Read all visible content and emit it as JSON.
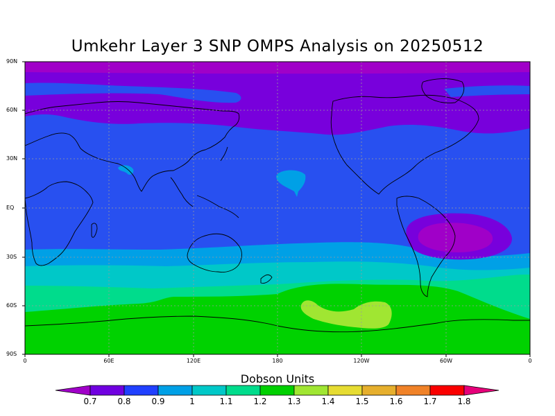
{
  "title": "Umkehr Layer 3 SNP OMPS Analysis on 20250512",
  "lat_labels": [
    "90N",
    "60N",
    "30N",
    "EQ",
    "30S",
    "60S",
    "90S"
  ],
  "lon_labels": [
    "0",
    "60E",
    "120E",
    "180",
    "120W",
    "60W",
    "0"
  ],
  "colorbar": {
    "title": "Dobson Units",
    "labels": [
      "0.7",
      "0.8",
      "0.9",
      "1",
      "1.1",
      "1.2",
      "1.3",
      "1.4",
      "1.5",
      "1.6",
      "1.7",
      "1.8"
    ],
    "colors": [
      "#a000c8",
      "#7000e0",
      "#2040ff",
      "#00a0e6",
      "#00c8c8",
      "#00dc8c",
      "#00d000",
      "#a0e632",
      "#e6dc32",
      "#e6af2d",
      "#f08228",
      "#fa0000",
      "#e6007a"
    ]
  },
  "colors": {
    "band_0_7": "#a000c8",
    "band_0_8": "#7800dc",
    "band_0_9": "#2850f0",
    "band_1_0": "#00a0e6",
    "band_1_1": "#00c8c8",
    "band_1_2": "#00dc8c",
    "band_1_3": "#00d200",
    "band_1_4": "#a0e632"
  }
}
